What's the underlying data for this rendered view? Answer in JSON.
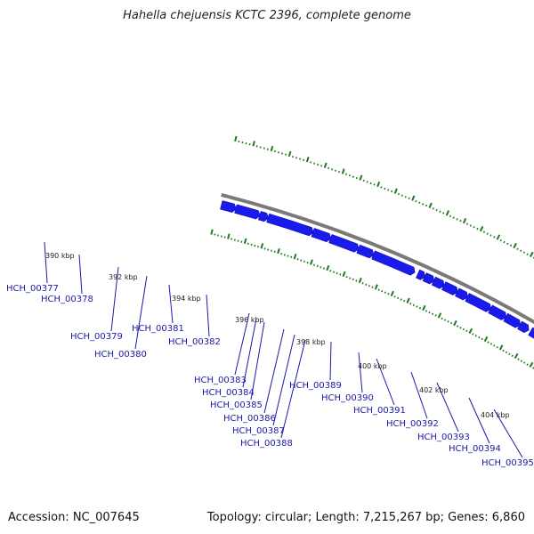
{
  "title": "Hahella chejuensis KCTC 2396, complete genome",
  "accession": "Accession: NC_007645",
  "summary": "Topology: circular; Length: 7,215,267 bp; Genes: 6,860",
  "colors": {
    "gene_blue": "#1a1aee",
    "backbone": "#7a7a7a",
    "tick_green": "#1f7a1f",
    "label_blue": "#1a1aa6",
    "highlight_red": "#ee1111"
  },
  "kbp_labels": [
    "390 kbp",
    "392 kbp",
    "394 kbp",
    "396 kbp",
    "398 kbp",
    "400 kbp",
    "402 kbp",
    "404 kbp"
  ],
  "genes": [
    "HCH_00377",
    "HCH_00378",
    "HCH_00379",
    "HCH_00380",
    "HCH_00381",
    "HCH_00382",
    "HCH_00383",
    "HCH_00384",
    "HCH_00385",
    "HCH_00386",
    "HCH_00387",
    "HCH_00388",
    "HCH_00389",
    "HCH_00390",
    "HCH_00391",
    "HCH_00392",
    "HCH_00393",
    "HCH_00394",
    "HCH_00395"
  ]
}
